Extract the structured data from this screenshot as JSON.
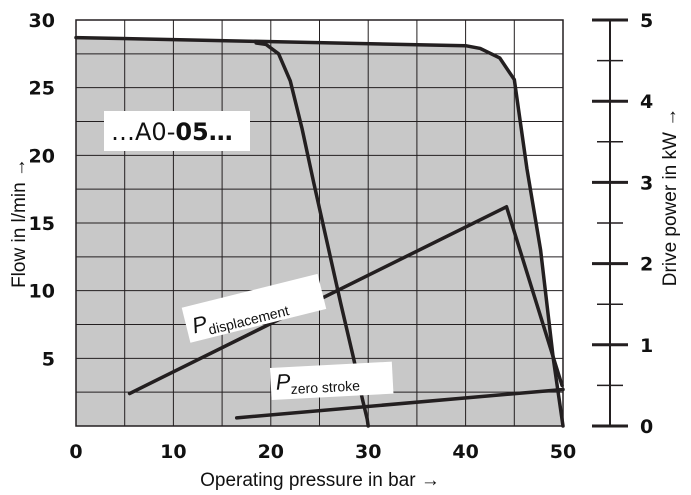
{
  "chart_data": {
    "type": "line",
    "xlabel": "Operating pressure in bar →",
    "ylabel": "Flow in l/min →",
    "y2label": "Drive power in kW →",
    "xlim": [
      0,
      50
    ],
    "ylim": [
      0,
      30
    ],
    "y2lim": [
      0,
      5
    ],
    "x_ticks": [
      "0",
      "10",
      "20",
      "30",
      "40",
      "50"
    ],
    "y_ticks": [
      "30",
      "25",
      "20",
      "15",
      "10",
      "5"
    ],
    "y2_ticks": [
      "5",
      "4",
      "3",
      "2",
      "1",
      "0"
    ],
    "grid": true,
    "region_color": "#c8c8c8",
    "line_color": "#231f20",
    "model_label": {
      "prefix": "…A0-",
      "bold": "05…"
    },
    "series": [
      {
        "name": "",
        "x": [
          0,
          40,
          41.5,
          43.5,
          45,
          46.3,
          47.7,
          49,
          49.8,
          50
        ],
        "y": [
          28.7,
          28.1,
          27.9,
          27.2,
          25.6,
          19.0,
          13.0,
          5.0,
          1.0,
          0
        ]
      },
      {
        "name": "",
        "x": [
          18.5,
          19.5,
          20.8,
          22.0,
          23.2,
          24.4,
          25.8,
          27.2,
          28.5,
          29.4,
          29.9,
          30.0
        ],
        "y": [
          28.3,
          28.2,
          27.5,
          25.5,
          22.0,
          18.0,
          13.5,
          9.0,
          5.0,
          2.0,
          0.5,
          0
        ]
      },
      {
        "name": "P displacement",
        "label_main": "P",
        "label_sub": "displacement",
        "x": [
          5.5,
          44.2,
          49.9
        ],
        "y": [
          0.4,
          2.7,
          0.5
        ]
      },
      {
        "name": "P zero stroke",
        "label_main": "P",
        "label_sub": "zero stroke",
        "x": [
          16.5,
          50
        ],
        "y": [
          0.1,
          0.45
        ]
      }
    ]
  }
}
